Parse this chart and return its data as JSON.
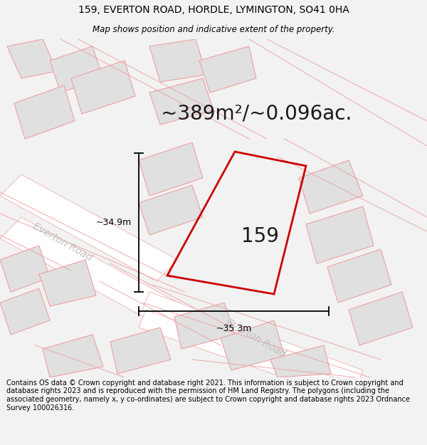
{
  "title_line1": "159, EVERTON ROAD, HORDLE, LYMINGTON, SO41 0HA",
  "title_line2": "Map shows position and indicative extent of the property.",
  "area_text": "~389m²/~0.096ac.",
  "label_159": "159",
  "dim_height": "~34.9m",
  "dim_width": "~35.3m",
  "footer": "Contains OS data © Crown copyright and database right 2021. This information is subject to Crown copyright and database rights 2023 and is reproduced with the permission of HM Land Registry. The polygons (including the associated geometry, namely x, y co-ordinates) are subject to Crown copyright and database rights 2023 Ordnance Survey 100026316.",
  "bg_color": "#f2f2f2",
  "map_bg": "#f8f8f8",
  "property_color": "#cc0000",
  "neighbor_fill": "#e0e0e0",
  "neighbor_edge": "#f0a0a0",
  "road_color": "#f0a0a0",
  "title_fontsize": 10,
  "area_fontsize": 20,
  "label_fontsize": 20,
  "footer_fontsize": 7,
  "road_label_color": "#c0c0c0",
  "road_label_size": 10
}
